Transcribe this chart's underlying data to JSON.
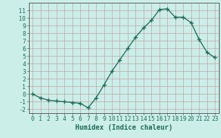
{
  "x": [
    0,
    1,
    2,
    3,
    4,
    5,
    6,
    7,
    8,
    9,
    10,
    11,
    12,
    13,
    14,
    15,
    16,
    17,
    18,
    19,
    20,
    21,
    22,
    23
  ],
  "y": [
    0.0,
    -0.5,
    -0.8,
    -0.9,
    -1.0,
    -1.1,
    -1.2,
    -1.8,
    -0.5,
    1.2,
    3.0,
    4.5,
    6.0,
    7.5,
    8.7,
    9.7,
    11.1,
    11.2,
    10.1,
    10.1,
    9.4,
    7.2,
    5.5,
    4.8
  ],
  "line_color": "#1a6b5a",
  "marker": "+",
  "marker_size": 4,
  "background_color": "#cceee8",
  "grid_color_major": "#c0a0a0",
  "grid_color_minor": "#d8c0c0",
  "xlabel": "Humidex (Indice chaleur)",
  "xlim": [
    -0.5,
    23.5
  ],
  "ylim": [
    -2.5,
    12.0
  ],
  "yticks": [
    -2,
    -1,
    0,
    1,
    2,
    3,
    4,
    5,
    6,
    7,
    8,
    9,
    10,
    11
  ],
  "xticks": [
    0,
    1,
    2,
    3,
    4,
    5,
    6,
    7,
    8,
    9,
    10,
    11,
    12,
    13,
    14,
    15,
    16,
    17,
    18,
    19,
    20,
    21,
    22,
    23
  ],
  "xlabel_fontsize": 7,
  "tick_fontsize": 6,
  "line_width": 1.0
}
